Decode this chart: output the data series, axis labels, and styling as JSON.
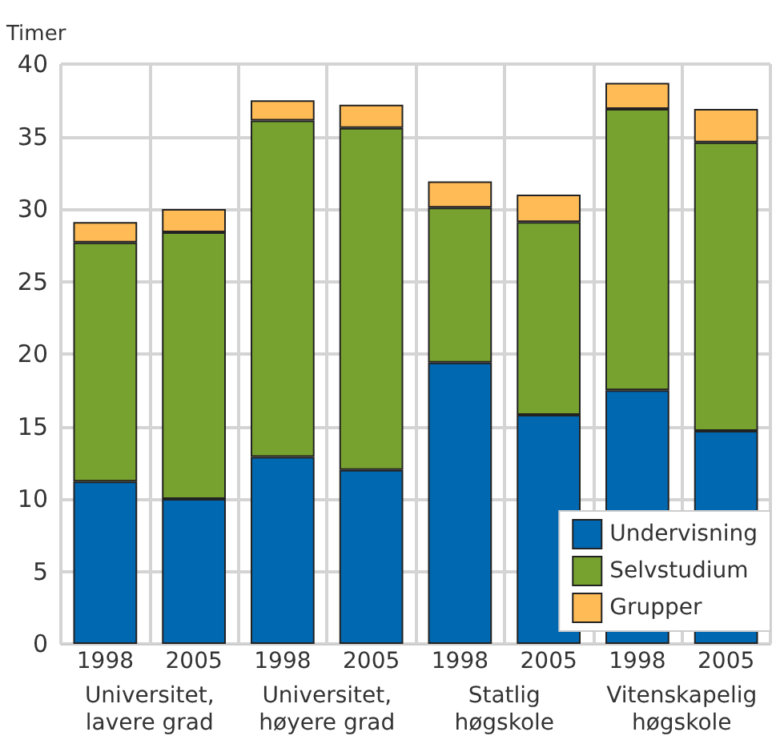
{
  "chart_data": {
    "type": "bar",
    "stacked": true,
    "ylabel": "Timer",
    "categories": [
      "1998",
      "2005",
      "1998",
      "2005",
      "1998",
      "2005",
      "1998",
      "2005"
    ],
    "series": [
      {
        "name": "Undervisning",
        "color": "#0068b0",
        "values": [
          11.2,
          10.0,
          12.9,
          12.0,
          19.4,
          15.8,
          17.5,
          14.7
        ]
      },
      {
        "name": "Selvstudium",
        "color": "#78a22f",
        "values": [
          16.5,
          18.4,
          23.2,
          23.6,
          10.7,
          13.3,
          19.4,
          19.9
        ]
      },
      {
        "name": "Grupper",
        "color": "#ffbb55",
        "values": [
          1.4,
          1.6,
          1.4,
          1.6,
          1.8,
          1.9,
          1.8,
          2.3
        ]
      }
    ],
    "ylim": [
      0,
      40
    ],
    "yticks": [
      0,
      5,
      10,
      15,
      20,
      25,
      30,
      35,
      40
    ],
    "grid": true,
    "legend": "bottom right",
    "annotations": [
      "Universitet,\nlavere grad",
      "Universitet,\nhøyere grad",
      "Statlig\nhøgskole",
      "Vitenskapelig\nhøgskole"
    ]
  }
}
